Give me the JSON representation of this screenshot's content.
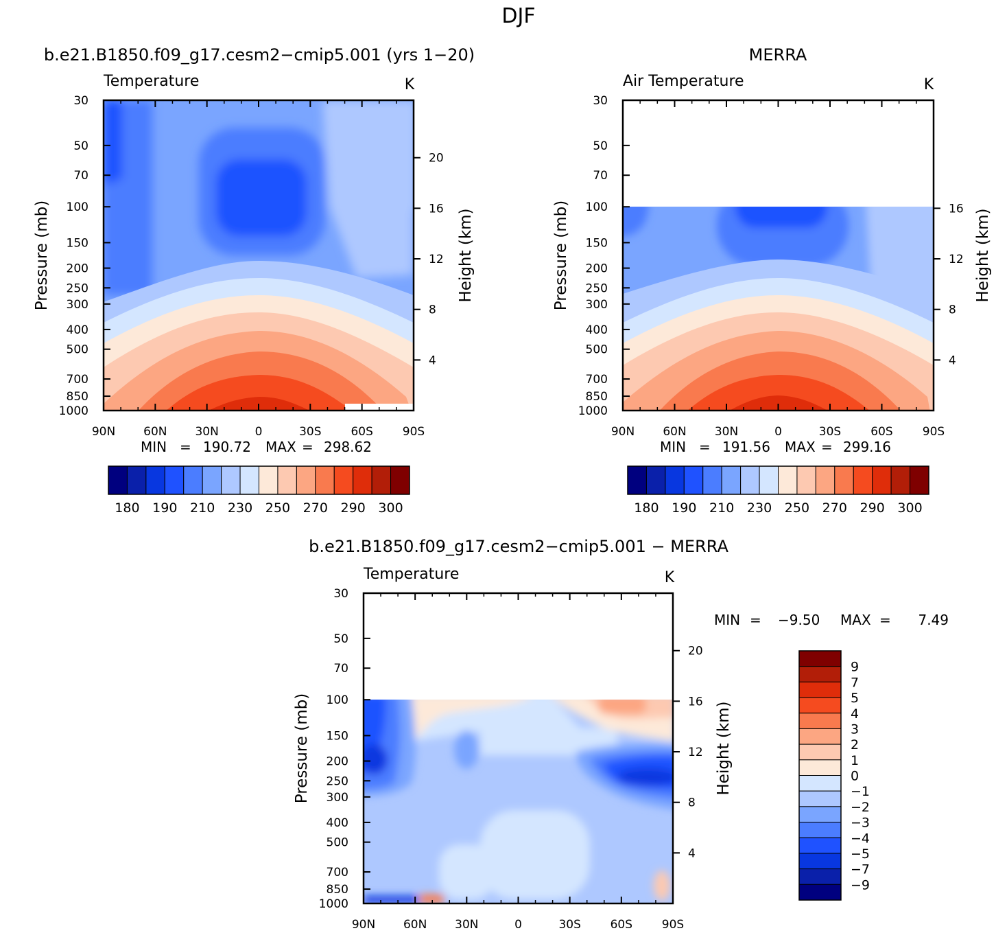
{
  "figure": {
    "season": "DJF"
  },
  "chart_data": [
    {
      "type": "heatmap",
      "panel": "model",
      "title": "b.e21.B1850.f09_g17.cesm2−cmip5.001 (yrs 1−20)",
      "variable": "Temperature",
      "units": "K",
      "xlabel": "",
      "ylabel": "Pressure (mb)",
      "y2label": "Height (km)",
      "x_ticks": [
        "90N",
        "60N",
        "30N",
        "0",
        "30S",
        "60S",
        "90S"
      ],
      "y_ticks": [
        "30",
        "50",
        "70",
        "100",
        "150",
        "200",
        "250",
        "300",
        "400",
        "500",
        "700",
        "850",
        "1000"
      ],
      "y2_ticks": [
        "20",
        "16",
        "12",
        "8",
        "4"
      ],
      "stats_min_label": "MIN",
      "stats_max_label": "MAX",
      "stats_sep": "=",
      "min": "190.72",
      "max": "298.62",
      "colorbar_labels": [
        "180",
        "190",
        "210",
        "230",
        "250",
        "270",
        "290",
        "300"
      ],
      "contour_levels": [
        180,
        190,
        200,
        210,
        220,
        230,
        240,
        250,
        260,
        270,
        280,
        290,
        295,
        300
      ],
      "top_pressure": 30
    },
    {
      "type": "heatmap",
      "panel": "obs",
      "title": "MERRA",
      "variable": "Air Temperature",
      "units": "K",
      "xlabel": "",
      "ylabel": "Pressure (mb)",
      "y2label": "Height (km)",
      "x_ticks": [
        "90N",
        "60N",
        "30N",
        "0",
        "30S",
        "60S",
        "90S"
      ],
      "y_ticks": [
        "30",
        "50",
        "70",
        "100",
        "150",
        "200",
        "250",
        "300",
        "400",
        "500",
        "700",
        "850",
        "1000"
      ],
      "y2_ticks": [
        "16",
        "12",
        "8",
        "4"
      ],
      "stats_min_label": "MIN",
      "stats_max_label": "MAX",
      "stats_sep": "=",
      "min": "191.56",
      "max": "299.16",
      "colorbar_labels": [
        "180",
        "190",
        "210",
        "230",
        "250",
        "270",
        "290",
        "300"
      ],
      "contour_levels": [
        180,
        190,
        200,
        210,
        220,
        230,
        240,
        250,
        260,
        270,
        280,
        290,
        295,
        300
      ],
      "data_top_pressure": 100
    },
    {
      "type": "heatmap",
      "panel": "difference",
      "title": "b.e21.B1850.f09_g17.cesm2−cmip5.001 − MERRA",
      "variable": "Temperature",
      "units": "K",
      "xlabel": "",
      "ylabel": "Pressure (mb)",
      "y2label": "Height (km)",
      "x_ticks": [
        "90N",
        "60N",
        "30N",
        "0",
        "30S",
        "60S",
        "90S"
      ],
      "y_ticks": [
        "30",
        "50",
        "70",
        "100",
        "150",
        "200",
        "250",
        "300",
        "400",
        "500",
        "700",
        "850",
        "1000"
      ],
      "y2_ticks": [
        "20",
        "16",
        "12",
        "8",
        "4"
      ],
      "stats_min_label": "MIN",
      "stats_max_label": "MAX",
      "stats_sep": "=",
      "min": "−9.50",
      "max": "7.49",
      "colorbar_labels": [
        "9",
        "7",
        "5",
        "4",
        "3",
        "2",
        "1",
        "0",
        "−1",
        "−2",
        "−3",
        "−4",
        "−5",
        "−7",
        "−9"
      ],
      "contour_levels": [
        -9,
        -7,
        -5,
        -4,
        -3,
        -2,
        -1,
        0,
        1,
        2,
        3,
        4,
        5,
        7,
        9
      ],
      "data_top_pressure": 100
    }
  ],
  "colors": {
    "abs_scale": [
      "#00007f",
      "#0a20aa",
      "#0837e0",
      "#1f52ff",
      "#4b7dff",
      "#7aa5ff",
      "#aec8ff",
      "#d4e6ff",
      "#fde9d9",
      "#fdc9b1",
      "#fca682",
      "#f97a4e",
      "#f54b1f",
      "#df2d0a",
      "#b21e08",
      "#7f0000"
    ],
    "diff_scale": [
      "#7f0000",
      "#b21e08",
      "#df2d0a",
      "#f54b1f",
      "#f97a4e",
      "#fca682",
      "#fdc9b1",
      "#fde9d9",
      "#d4e6ff",
      "#aec8ff",
      "#7aa5ff",
      "#4b7dff",
      "#1f52ff",
      "#0837e0",
      "#0a20aa",
      "#00007f"
    ]
  }
}
